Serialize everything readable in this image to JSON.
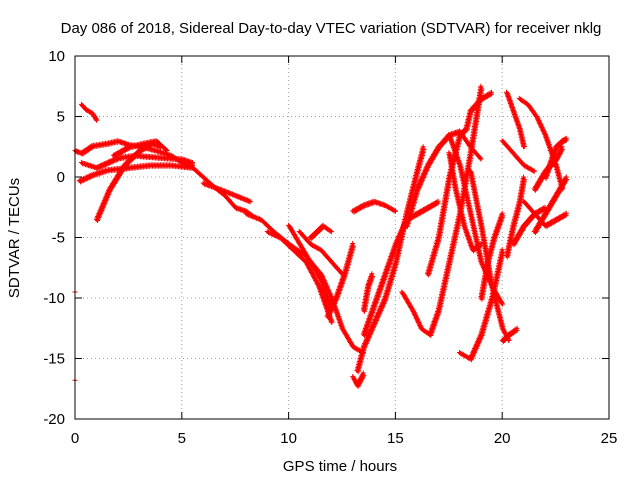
{
  "chart_data": {
    "type": "scatter",
    "title": "Day 086 of 2018, Sidereal Day-to-day VTEC variation (SDTVAR) for receiver nklg",
    "xlabel": "GPS time / hours",
    "ylabel": "SDTVAR / TECUs",
    "xlim": [
      0,
      25
    ],
    "ylim": [
      -20,
      10
    ],
    "xticks": [
      "0",
      "5",
      "10",
      "15",
      "20",
      "25"
    ],
    "yticks": [
      "-20",
      "-15",
      "-10",
      "-5",
      "0",
      "5",
      "10"
    ],
    "xtick_values": [
      0,
      5,
      10,
      15,
      20,
      25
    ],
    "ytick_values": [
      -20,
      -15,
      -10,
      -5,
      0,
      5,
      10
    ],
    "grid": true,
    "marker": "+",
    "color": "#ff0000",
    "series": [
      {
        "name": "track-01",
        "x": [
          0.0,
          0.3,
          0.8,
          1.5,
          2.0,
          2.5,
          3.2,
          3.8,
          4.5,
          5.0,
          5.5
        ],
        "y": [
          2.2,
          2.0,
          2.6,
          2.8,
          3.0,
          2.7,
          2.5,
          2.2,
          1.8,
          1.2,
          1.0
        ]
      },
      {
        "name": "track-02",
        "x": [
          0.3,
          1.0,
          1.5,
          2.0,
          2.8,
          3.5,
          4.2,
          5.0,
          5.5
        ],
        "y": [
          1.2,
          0.8,
          1.2,
          1.6,
          1.8,
          1.7,
          1.6,
          1.5,
          1.2
        ]
      },
      {
        "name": "track-03",
        "x": [
          0.2,
          0.8,
          1.5,
          2.5,
          3.5,
          4.5,
          5.5
        ],
        "y": [
          -0.3,
          0.2,
          0.6,
          0.8,
          1.0,
          1.0,
          0.8
        ]
      },
      {
        "name": "track-04",
        "x": [
          0.3,
          0.5,
          0.8,
          1.0
        ],
        "y": [
          6.0,
          5.6,
          5.3,
          4.7
        ]
      },
      {
        "name": "track-05",
        "x": [
          1.0,
          1.6,
          2.3,
          3.0,
          3.6,
          4.0
        ],
        "y": [
          -3.5,
          -1.0,
          1.0,
          2.2,
          2.8,
          2.5
        ]
      },
      {
        "name": "track-06",
        "x": [
          1.8,
          2.5,
          3.2,
          3.8,
          4.3
        ],
        "y": [
          1.8,
          2.5,
          2.8,
          3.0,
          2.2
        ]
      },
      {
        "name": "track-07",
        "x": [
          5.5,
          6.0,
          6.5,
          7.0,
          7.5,
          8.0,
          8.3
        ],
        "y": [
          0.8,
          0.0,
          -0.8,
          -1.5,
          -2.5,
          -2.8,
          -3.2
        ]
      },
      {
        "name": "track-08",
        "x": [
          6.0,
          6.8,
          7.5,
          8.2
        ],
        "y": [
          -0.5,
          -1.0,
          -1.5,
          -2.0
        ]
      },
      {
        "name": "track-09",
        "x": [
          8.0,
          8.7,
          9.3,
          10.0,
          10.8,
          11.5,
          12.0,
          12.5,
          13.0,
          13.5
        ],
        "y": [
          -3.0,
          -3.5,
          -4.5,
          -5.5,
          -6.5,
          -8.0,
          -10.0,
          -12.5,
          -14.0,
          -14.5
        ]
      },
      {
        "name": "track-10",
        "x": [
          9.0,
          9.6,
          10.2,
          10.8,
          11.4,
          11.8,
          12.0
        ],
        "y": [
          -4.5,
          -5.0,
          -6.0,
          -7.0,
          -9.0,
          -11.0,
          -12.0
        ]
      },
      {
        "name": "track-11",
        "x": [
          10.0,
          10.5,
          11.0,
          11.5,
          11.8,
          12.0
        ],
        "y": [
          -4.0,
          -5.5,
          -7.0,
          -8.5,
          -10.0,
          -11.0
        ]
      },
      {
        "name": "track-12",
        "x": [
          10.5,
          11.0,
          11.5,
          12.0,
          12.5
        ],
        "y": [
          -4.5,
          -5.5,
          -6.0,
          -7.0,
          -8.0
        ]
      },
      {
        "name": "track-13",
        "x": [
          11.0,
          11.3,
          11.6,
          12.0
        ],
        "y": [
          -5.0,
          -4.5,
          -4.0,
          -4.5
        ]
      },
      {
        "name": "track-14",
        "x": [
          11.8,
          12.2,
          12.6,
          13.0
        ],
        "y": [
          -11.5,
          -10.0,
          -8.0,
          -5.5
        ]
      },
      {
        "name": "track-15",
        "x": [
          13.0,
          13.2,
          13.5
        ],
        "y": [
          -16.5,
          -17.2,
          -16.2
        ]
      },
      {
        "name": "track-16",
        "x": [
          13.2,
          13.5,
          14.0,
          14.5,
          15.0,
          15.5,
          16.0,
          16.3
        ],
        "y": [
          -16.0,
          -14.0,
          -12.0,
          -10.0,
          -7.0,
          -3.0,
          0.5,
          2.5
        ]
      },
      {
        "name": "track-17",
        "x": [
          13.5,
          14.0,
          14.5,
          15.0,
          15.5,
          16.0,
          16.5,
          17.0
        ],
        "y": [
          -13.0,
          -10.5,
          -8.0,
          -5.5,
          -3.5,
          -3.0,
          -2.5,
          -2.0
        ]
      },
      {
        "name": "track-18",
        "x": [
          13.5,
          13.7,
          13.9
        ],
        "y": [
          -11.0,
          -9.0,
          -8.0
        ]
      },
      {
        "name": "track-19",
        "x": [
          13.0,
          13.5,
          14.0,
          14.5,
          15.0
        ],
        "y": [
          -2.8,
          -2.3,
          -2.0,
          -2.3,
          -2.8
        ]
      },
      {
        "name": "track-20",
        "x": [
          15.3,
          15.8,
          16.2,
          16.6,
          17.0,
          17.5,
          18.0,
          18.5,
          19.0
        ],
        "y": [
          -9.5,
          -11.0,
          -12.5,
          -13.0,
          -11.0,
          -7.0,
          -3.0,
          2.0,
          7.5
        ]
      },
      {
        "name": "track-21",
        "x": [
          15.5,
          16.0,
          16.5,
          17.0,
          17.5,
          18.0,
          18.5,
          19.0
        ],
        "y": [
          -4.0,
          -1.0,
          1.0,
          2.5,
          3.5,
          3.8,
          2.5,
          1.5
        ]
      },
      {
        "name": "track-22",
        "x": [
          16.5,
          17.0,
          17.5,
          18.0,
          18.3,
          18.5,
          19.0,
          19.5
        ],
        "y": [
          -8.0,
          -5.0,
          0.0,
          3.5,
          4.0,
          5.5,
          6.5,
          7.0
        ]
      },
      {
        "name": "track-23",
        "x": [
          17.5,
          17.8,
          18.2,
          18.6,
          19.0
        ],
        "y": [
          2.0,
          -1.0,
          -4.0,
          -6.0,
          -5.5
        ]
      },
      {
        "name": "track-24",
        "x": [
          17.5,
          18.0,
          18.5,
          19.0,
          19.5,
          20.0
        ],
        "y": [
          3.5,
          1.0,
          -3.0,
          -7.0,
          -9.0,
          -10.5
        ]
      },
      {
        "name": "track-25",
        "x": [
          18.0,
          18.5,
          19.0,
          19.5,
          20.0
        ],
        "y": [
          -14.5,
          -15.0,
          -13.0,
          -10.0,
          -6.0
        ]
      },
      {
        "name": "track-26",
        "x": [
          18.5,
          19.0,
          19.5,
          20.0,
          20.3
        ],
        "y": [
          0.5,
          -4.0,
          -9.0,
          -12.5,
          -13.5
        ]
      },
      {
        "name": "track-27",
        "x": [
          19.0,
          19.3,
          19.6,
          20.0
        ],
        "y": [
          -10.0,
          -7.0,
          -5.0,
          -3.0
        ]
      },
      {
        "name": "track-28",
        "x": [
          20.0,
          20.3,
          20.7
        ],
        "y": [
          -13.5,
          -13.0,
          -12.5
        ]
      },
      {
        "name": "track-29",
        "x": [
          20.2,
          20.5,
          20.8,
          21.0
        ],
        "y": [
          -6.5,
          -4.0,
          -2.0,
          0.0
        ]
      },
      {
        "name": "track-30",
        "x": [
          20.0,
          20.5,
          21.0,
          21.5
        ],
        "y": [
          3.0,
          2.0,
          1.0,
          0.5
        ]
      },
      {
        "name": "track-31",
        "x": [
          20.2,
          20.5,
          20.8,
          21.0
        ],
        "y": [
          7.0,
          5.5,
          4.0,
          2.5
        ]
      },
      {
        "name": "track-32",
        "x": [
          20.8,
          21.2,
          21.6,
          22.0,
          22.5,
          22.8
        ],
        "y": [
          6.5,
          6.0,
          5.0,
          3.5,
          1.0,
          -1.0
        ]
      },
      {
        "name": "track-33",
        "x": [
          21.0,
          21.5,
          22.0,
          22.5,
          23.0
        ],
        "y": [
          -2.0,
          -3.0,
          -4.0,
          -3.5,
          -3.0
        ]
      },
      {
        "name": "track-34",
        "x": [
          21.5,
          22.0,
          22.5,
          22.8
        ],
        "y": [
          -1.0,
          0.5,
          1.5,
          2.5
        ]
      },
      {
        "name": "track-35",
        "x": [
          20.5,
          21.0,
          21.5,
          22.0
        ],
        "y": [
          -5.5,
          -4.0,
          -3.0,
          -2.5
        ]
      },
      {
        "name": "track-36",
        "x": [
          21.5,
          22.0,
          22.5,
          23.0
        ],
        "y": [
          -4.5,
          -3.0,
          -1.5,
          0.0
        ]
      },
      {
        "name": "track-37",
        "x": [
          22.0,
          22.3,
          22.5,
          22.8
        ],
        "y": [
          0.0,
          1.5,
          2.5,
          3.0
        ]
      },
      {
        "name": "track-38",
        "x": [
          22.8,
          23.0
        ],
        "y": [
          3.0,
          3.2
        ]
      }
    ],
    "isolated_points": {
      "x": [
        0.0,
        0.0
      ],
      "y": [
        -9.5,
        -16.8
      ]
    }
  }
}
